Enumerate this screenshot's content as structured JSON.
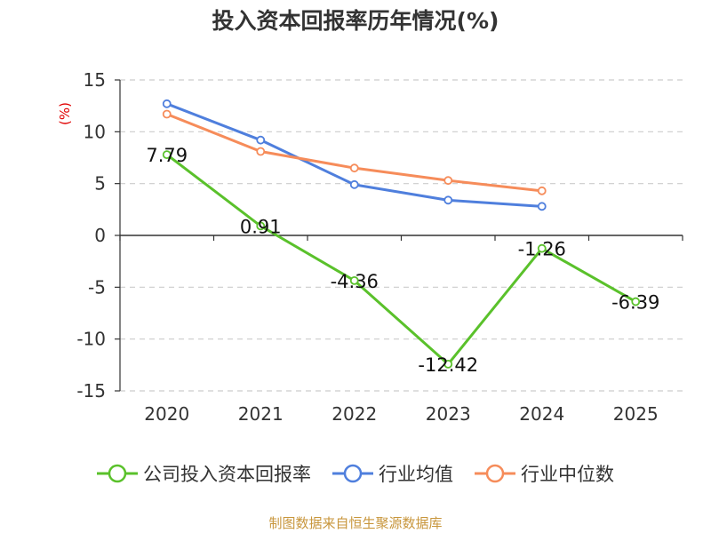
{
  "chart_data": {
    "type": "line",
    "title": "投入资本回报率历年情况(%)",
    "ylabel": "(%)",
    "xlabel": "",
    "categories": [
      "2020",
      "2021",
      "2022",
      "2023",
      "2024",
      "2025"
    ],
    "ylim": [
      -15,
      15
    ],
    "yticks": [
      15,
      10,
      5,
      0,
      -5,
      -10,
      -15
    ],
    "grid": true,
    "legend_position": "bottom",
    "series": [
      {
        "name": "公司投入资本回报率",
        "color": "#5ac12b",
        "values": [
          7.79,
          0.91,
          -4.36,
          -12.42,
          -1.26,
          -6.39
        ],
        "labels": [
          "7.79",
          "0.91",
          "-4.36",
          "-12.42",
          "-1.26",
          "-6.39"
        ]
      },
      {
        "name": "行业均值",
        "color": "#4f7fdd",
        "values": [
          12.7,
          9.2,
          4.9,
          3.4,
          2.8,
          null
        ]
      },
      {
        "name": "行业中位数",
        "color": "#f68c5a",
        "values": [
          11.7,
          8.1,
          6.5,
          5.3,
          4.3,
          null
        ]
      }
    ]
  },
  "source": {
    "text": "制图数据来自恒生聚源数据库",
    "color": "#c8963c"
  },
  "colors": {
    "ylabel": "#e00000",
    "axis": "#333333",
    "grid": "#cccccc"
  }
}
